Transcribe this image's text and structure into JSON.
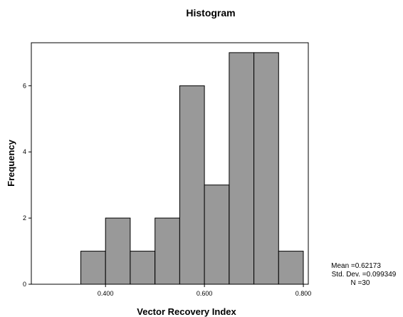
{
  "chart_data": {
    "type": "bar",
    "title": "Histogram",
    "xlabel": "Vector Recovery Index",
    "ylabel": "Frequency",
    "bin_edges": [
      0.35,
      0.4,
      0.45,
      0.5,
      0.55,
      0.6,
      0.65,
      0.7,
      0.75,
      0.8
    ],
    "values": [
      1,
      2,
      1,
      2,
      6,
      3,
      7,
      7,
      1
    ],
    "xlim": [
      0.25,
      0.81
    ],
    "ylim": [
      0,
      7.3
    ],
    "x_ticks": [
      0.4,
      0.6,
      0.8
    ],
    "x_tick_labels": [
      "0.400",
      "0.600",
      "0.800"
    ],
    "y_ticks": [
      0,
      2,
      4,
      6
    ],
    "y_tick_labels": [
      "0",
      "2",
      "4",
      "6"
    ],
    "grid": false,
    "stats": {
      "mean": "Mean =0.62173",
      "std_dev": "Std. Dev. =0.099349",
      "n": "N =30"
    }
  }
}
